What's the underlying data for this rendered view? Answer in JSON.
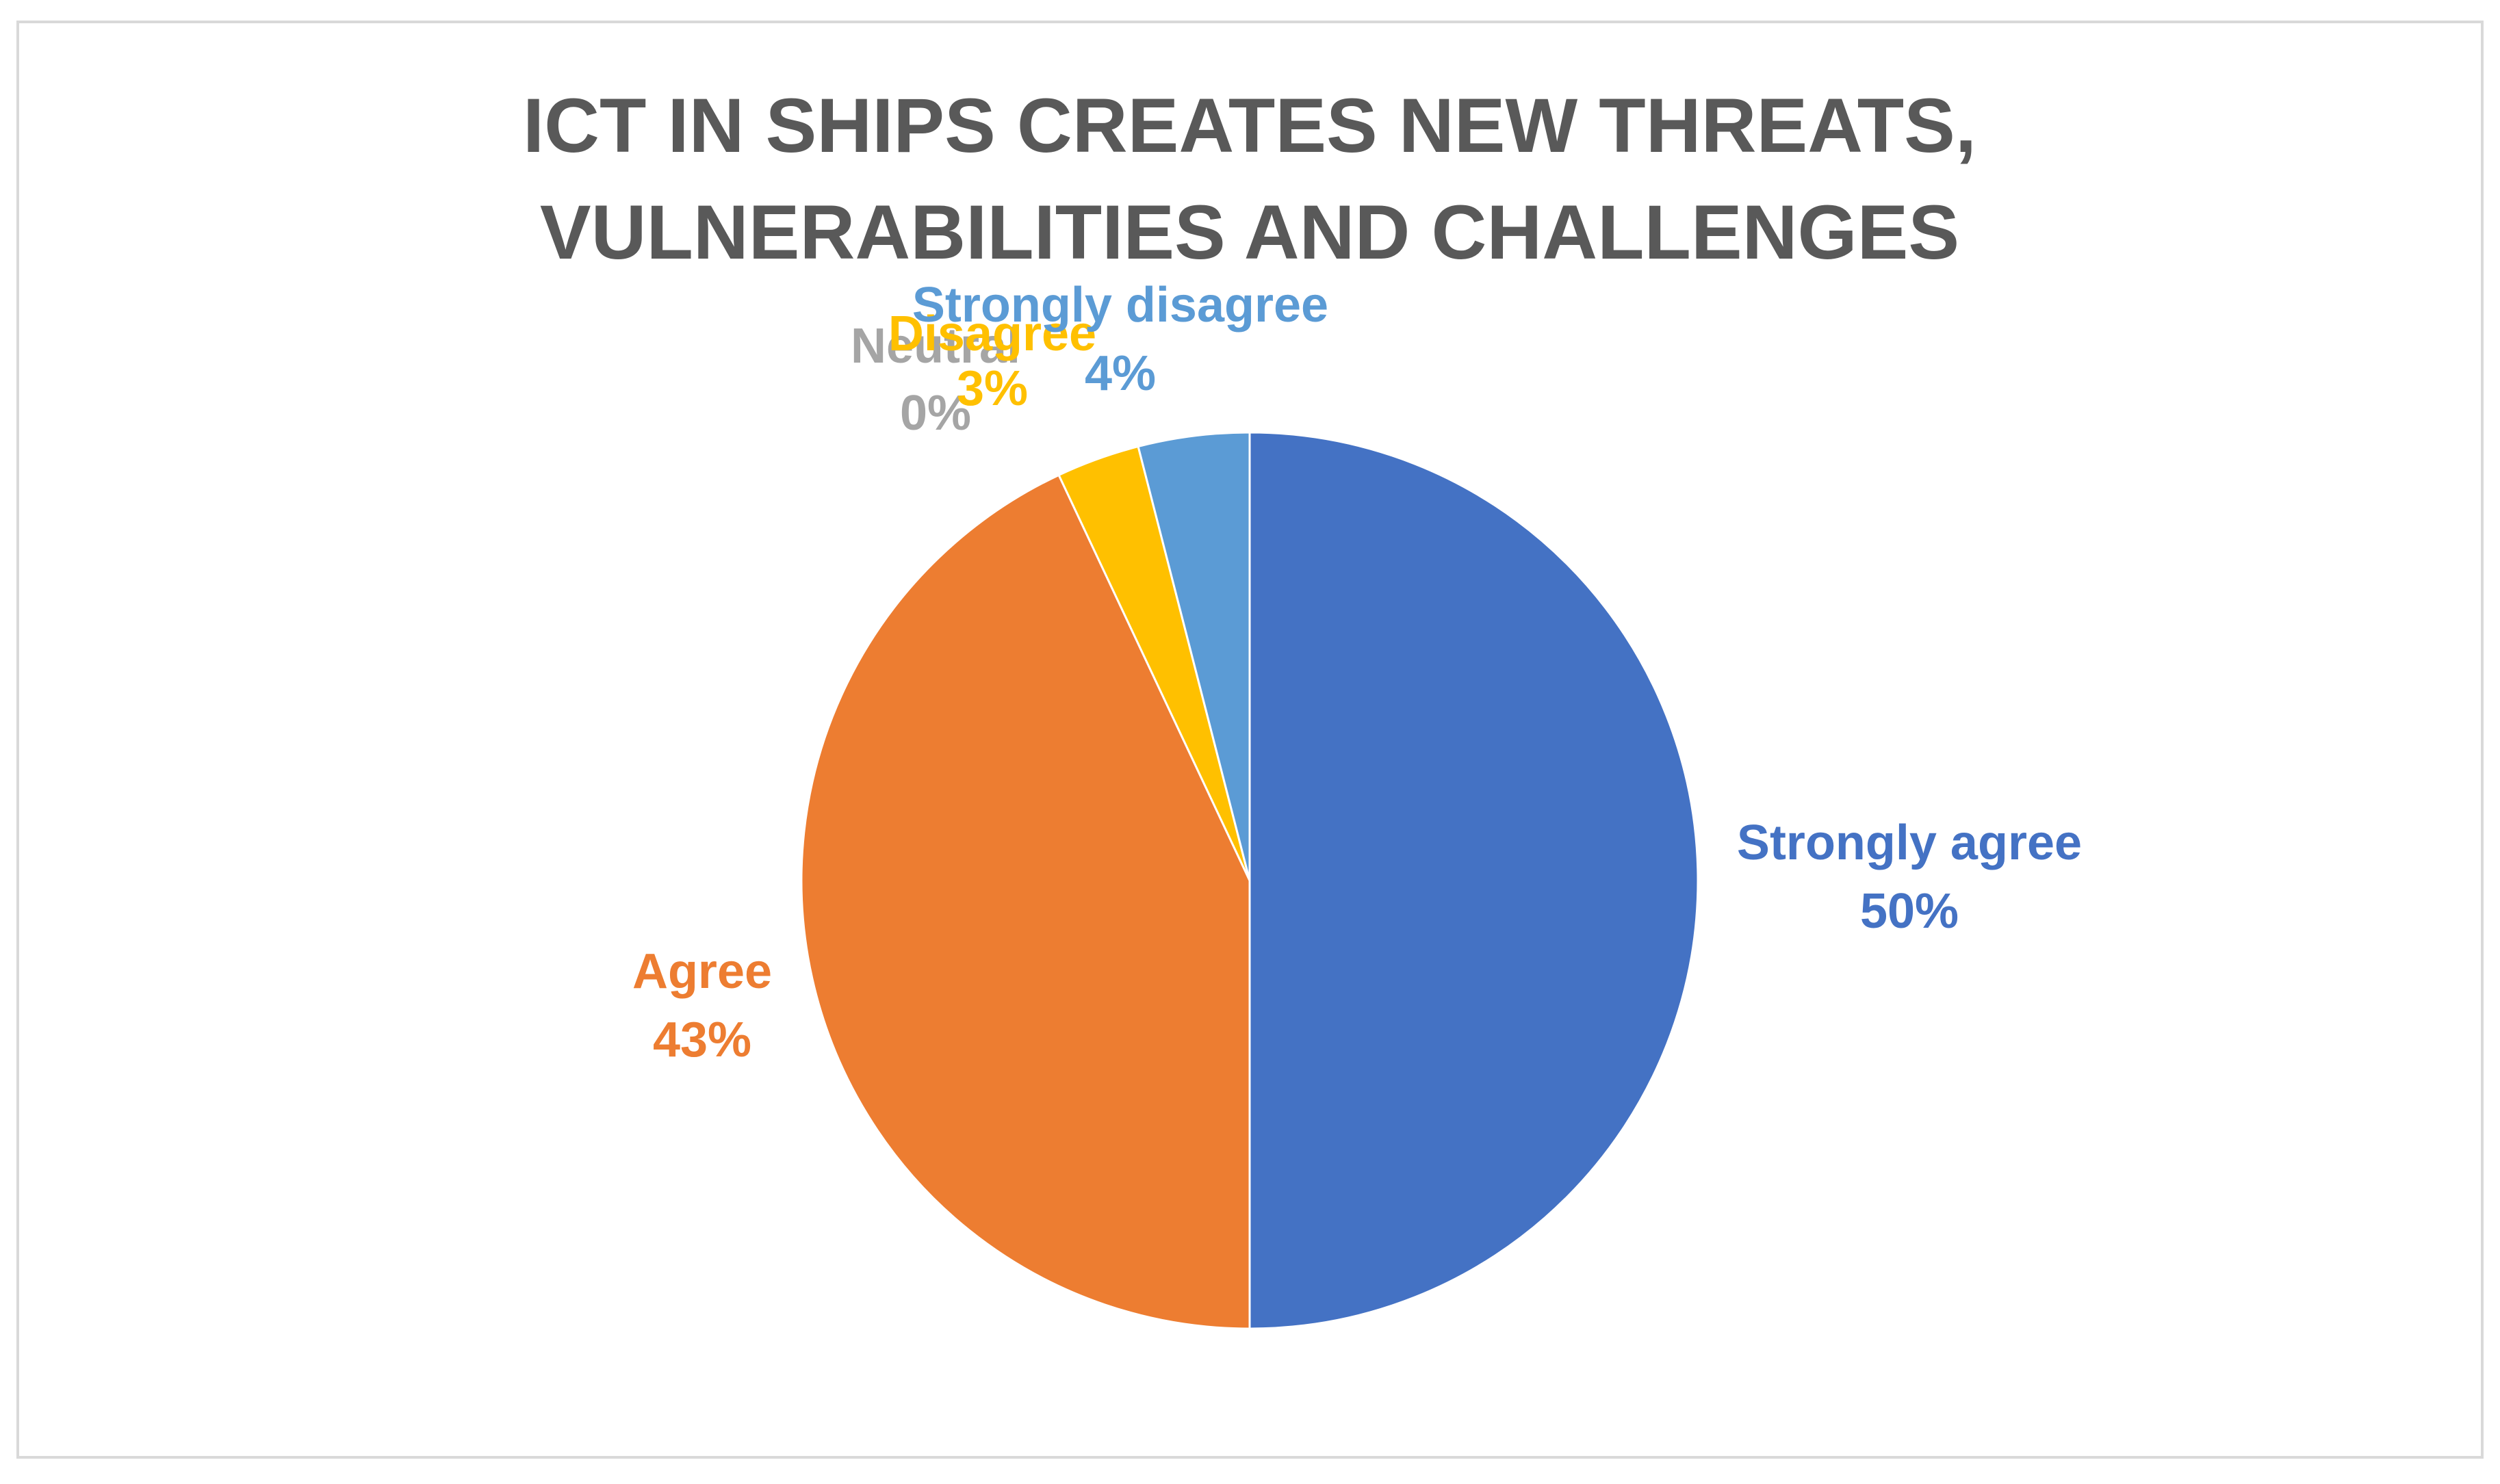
{
  "chart_data": {
    "type": "pie",
    "title_lines": [
      "ICT IN SHIPS CREATES NEW THREATS,",
      "VULNERABILITIES AND CHALLENGES"
    ],
    "categories": [
      "Strongly agree",
      "Agree",
      "Neutral",
      "Disagree",
      "Strongly disagree"
    ],
    "values": [
      50,
      43,
      0,
      3,
      4
    ],
    "value_labels": [
      "50%",
      "43%",
      "0%",
      "3%",
      "4%"
    ],
    "colors": [
      "#4472C4",
      "#ED7D31",
      "#A5A5A5",
      "#FFC000",
      "#5B9BD5"
    ],
    "start_angle_deg": 0,
    "direction": "clockwise",
    "legend": "none"
  }
}
